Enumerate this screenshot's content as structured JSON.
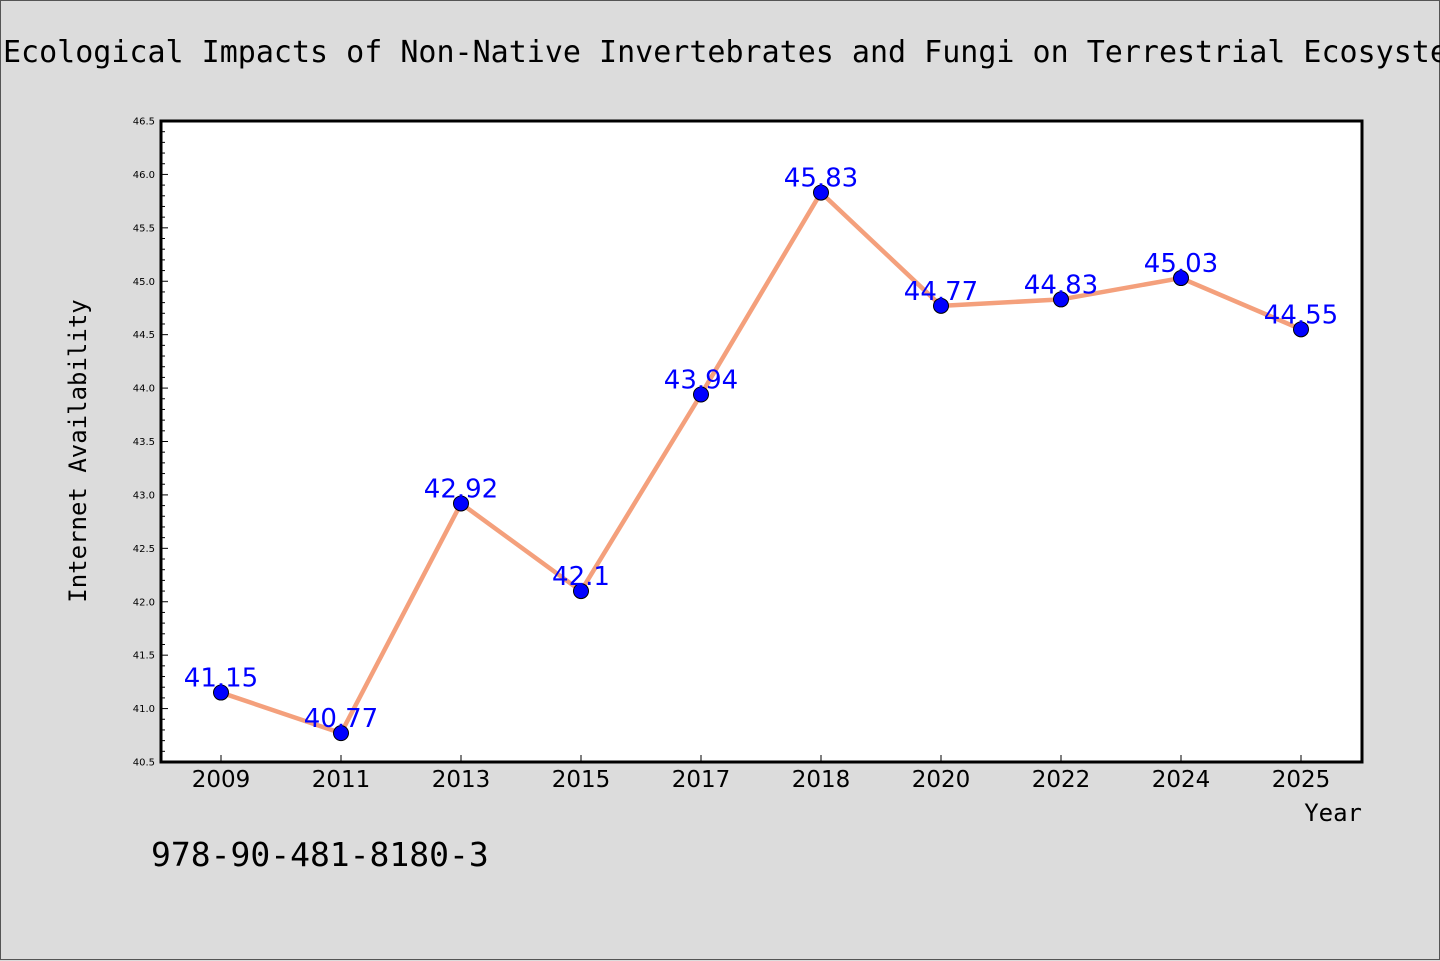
{
  "chart_data": {
    "type": "line",
    "title": "Ecological Impacts of Non-Native Invertebrates and Fungi on Terrestrial Ecosystems",
    "xlabel": "Year",
    "ylabel": "Internet Availability",
    "categories": [
      "2009",
      "2011",
      "2013",
      "2015",
      "2017",
      "2018",
      "2020",
      "2022",
      "2024",
      "2025"
    ],
    "values": [
      41.15,
      40.77,
      42.92,
      42.1,
      43.94,
      45.83,
      44.77,
      44.83,
      45.03,
      44.55
    ],
    "data_labels": [
      "41.15",
      "40.77",
      "42.92",
      "42.1",
      "43.94",
      "45.83",
      "44.77",
      "44.83",
      "45.03",
      "44.55"
    ],
    "ylim": [
      40.5,
      46.5
    ],
    "yticks": [
      "40.5",
      "41.0",
      "41.5",
      "42.0",
      "42.5",
      "43.0",
      "43.5",
      "44.0",
      "44.5",
      "45.0",
      "45.5",
      "46.0",
      "46.5"
    ],
    "grid": false,
    "line_color": "#f4a07c",
    "marker_color": "#0000ff",
    "label_color": "#0000ff",
    "background_color": "#dcdcdc",
    "plot_background": "#ffffff"
  },
  "caption": "978-90-481-8180-3"
}
